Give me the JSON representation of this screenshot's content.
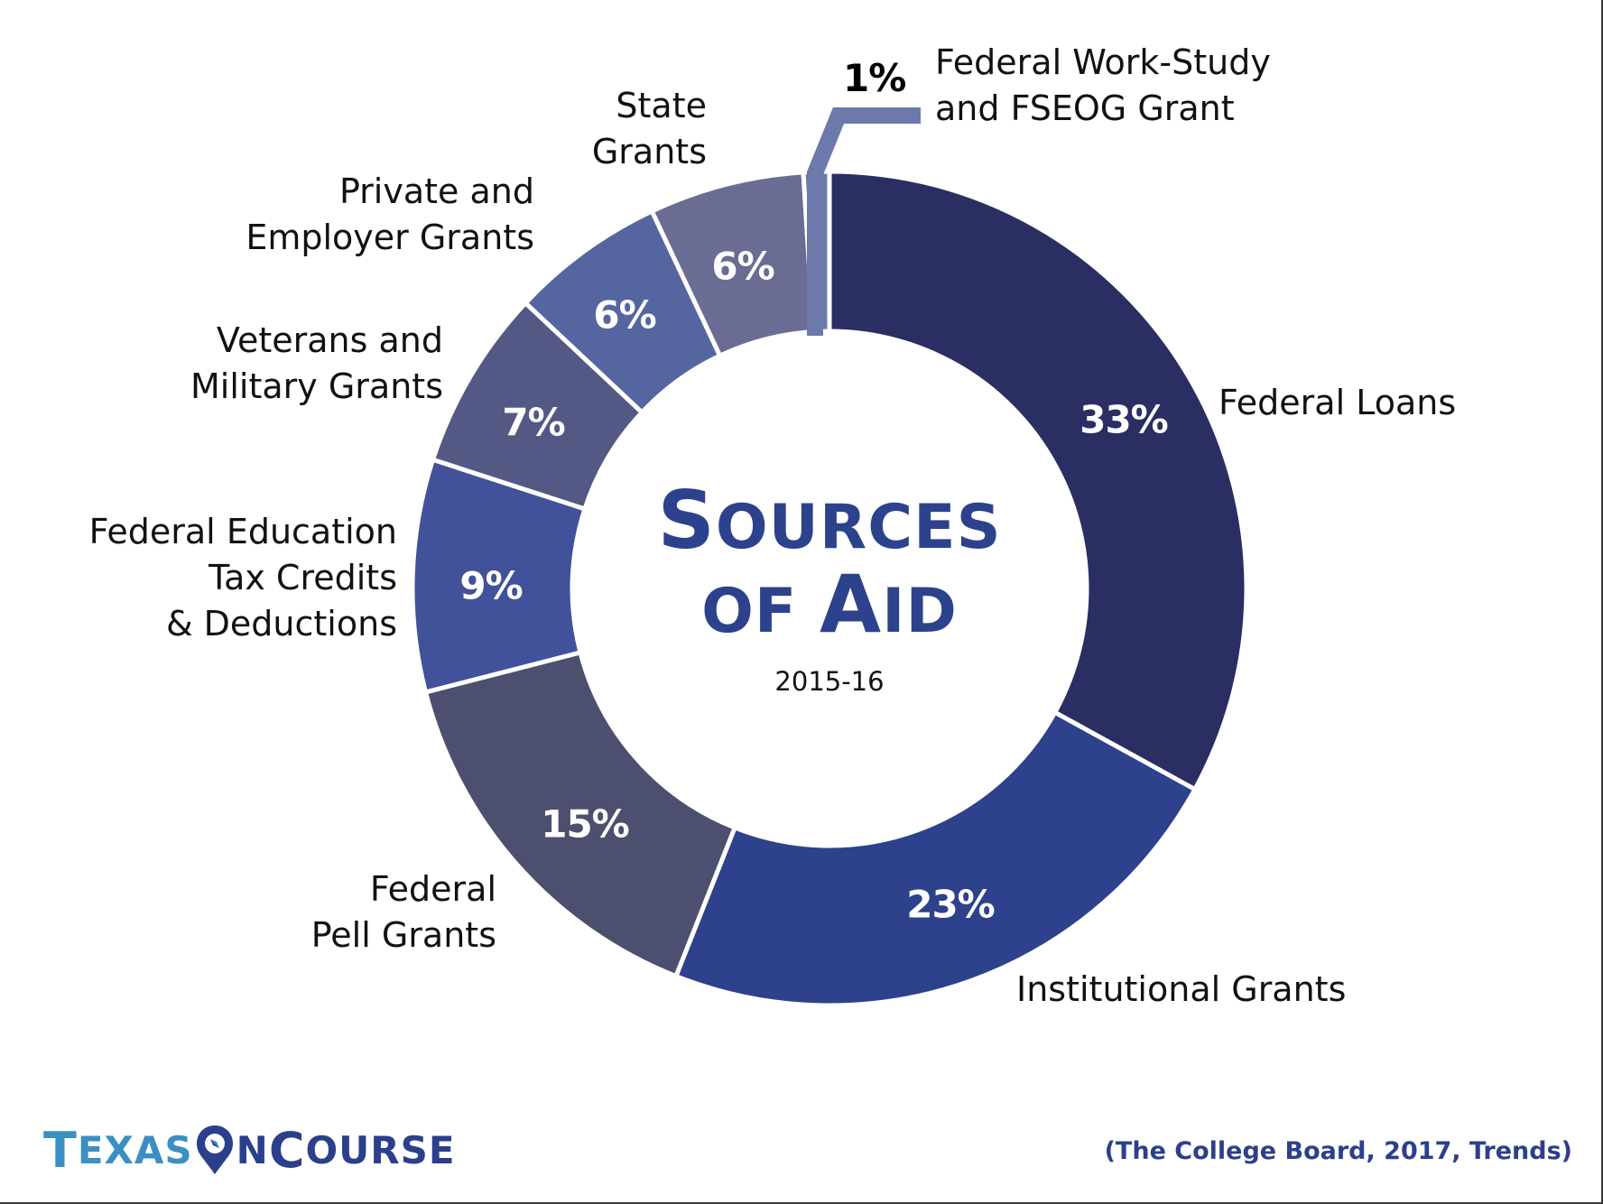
{
  "chart_data": {
    "type": "pie",
    "subtype": "donut",
    "title": "Sources of Aid",
    "subtitle": "2015-16",
    "start_angle_deg": 0,
    "direction": "clockwise",
    "slices": [
      {
        "label": "Federal Loans",
        "value": 33,
        "display": "33%",
        "color": "#2a2e63"
      },
      {
        "label": "Institutional Grants",
        "value": 23,
        "display": "23%",
        "color": "#2d418c"
      },
      {
        "label": "Federal Pell Grants",
        "value": 15,
        "display": "15%",
        "color": "#4d4f6e"
      },
      {
        "label": "Federal Education Tax Credits & Deductions",
        "value": 9,
        "display": "9%",
        "color": "#41519a"
      },
      {
        "label": "Veterans and Military Grants",
        "value": 7,
        "display": "7%",
        "color": "#545885"
      },
      {
        "label": "Private and Employer Grants",
        "value": 6,
        "display": "6%",
        "color": "#5565a0"
      },
      {
        "label": "State Grants",
        "value": 6,
        "display": "6%",
        "color": "#6b6c93"
      },
      {
        "label": "Federal Work-Study and FSEOG Grant",
        "value": 1,
        "display": "1%",
        "color": "#6b7aab"
      }
    ],
    "source": "(The College Board, 2017, Trends)"
  },
  "center": {
    "title_line1_big": "S",
    "title_line1_rest": "OURCES",
    "title_line2_pre": "OF ",
    "title_line2_big": "A",
    "title_line2_rest": "ID",
    "subtitle": "2015-16"
  },
  "labels": {
    "federal_loans": [
      "Federal Loans"
    ],
    "institutional": [
      "Institutional Grants"
    ],
    "pell": [
      "Federal",
      "Pell Grants"
    ],
    "tax": [
      "Federal Education",
      "Tax Credits",
      "& Deductions"
    ],
    "veterans": [
      "Veterans and",
      "Military Grants"
    ],
    "private": [
      "Private and",
      "Employer Grants"
    ],
    "state": [
      "State",
      "Grants"
    ],
    "workstudy": [
      "Federal Work-Study",
      "and FSEOG Grant"
    ]
  },
  "percents": {
    "federal_loans": "33%",
    "institutional": "23%",
    "pell": "15%",
    "tax": "9%",
    "veterans": "7%",
    "private": "6%",
    "state": "6%",
    "workstudy": "1%"
  },
  "footer": {
    "logo_texas_first": "T",
    "logo_texas_rest": "EXAS",
    "logo_n": "N",
    "logo_course_first": "C",
    "logo_course_rest": "OURSE",
    "citation": "(The College Board, 2017, Trends)"
  },
  "colors": {
    "title_blue": "#2c428c",
    "logo_light_blue": "#3b8fc2",
    "logo_dark_blue": "#2c3f8c",
    "leader_line": "#6b7aab"
  }
}
